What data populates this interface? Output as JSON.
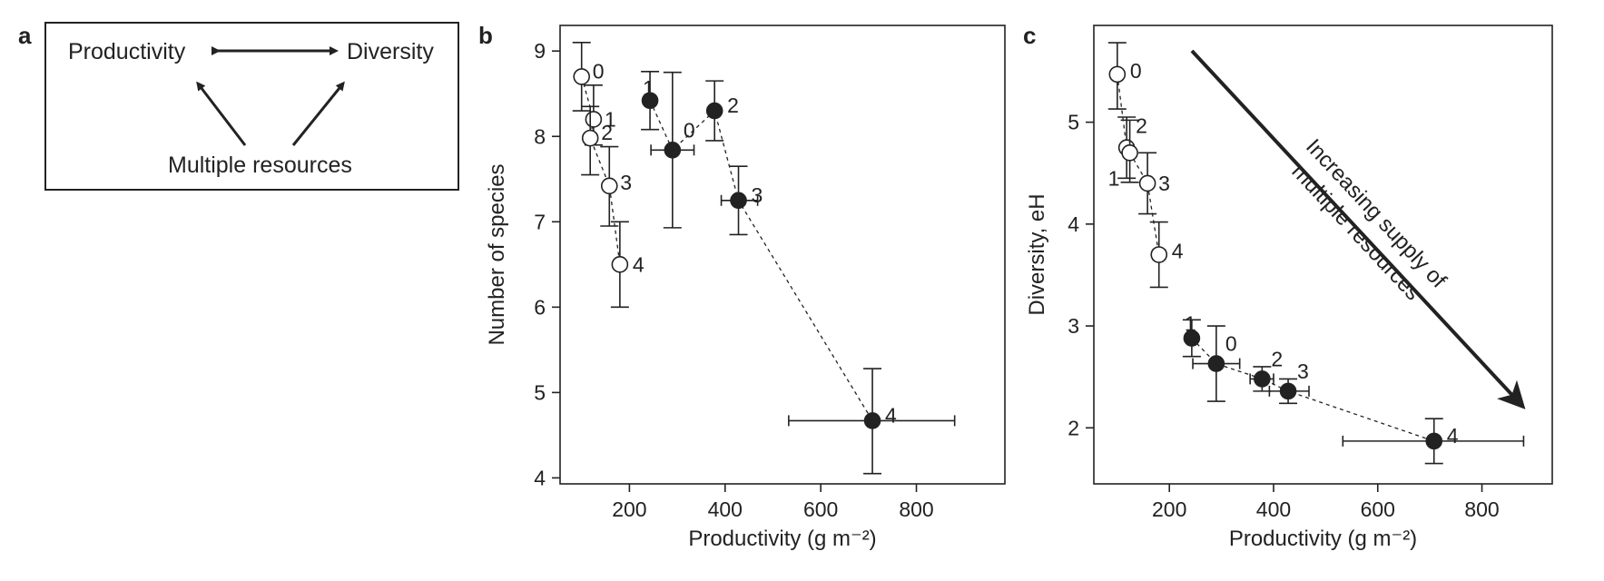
{
  "panel_a": {
    "letter": "a",
    "node_left": "Productivity",
    "node_right": "Diversity",
    "node_bottom": "Multiple resources"
  },
  "chart_data": [
    {
      "panel": "b",
      "type": "scatter",
      "xlabel": "Productivity (g m⁻²)",
      "ylabel": "Number  of species",
      "xlim": [
        55,
        985
      ],
      "ylim": [
        3.93,
        9.3
      ],
      "xticks": [
        200,
        400,
        600,
        800
      ],
      "yticks": [
        4,
        5,
        6,
        7,
        8,
        9
      ],
      "grid": false,
      "series": [
        {
          "marker": "open-circle",
          "dashed_line": true,
          "points": [
            {
              "label": "0",
              "x": 100,
              "y": 8.7,
              "yerr": [
                8.3,
                9.1
              ]
            },
            {
              "label": "1",
              "x": 125,
              "y": 8.2,
              "yerr": [
                7.9,
                8.6
              ]
            },
            {
              "label": "2",
              "x": 118,
              "y": 7.98,
              "yerr": [
                7.55,
                8.35
              ]
            },
            {
              "label": "3",
              "x": 158,
              "y": 7.42,
              "yerr": [
                6.95,
                7.88
              ]
            },
            {
              "label": "4",
              "x": 180,
              "y": 6.5,
              "yerr": [
                6.0,
                7.0
              ],
              "xerr": [
                168,
                192
              ]
            }
          ]
        },
        {
          "marker": "filled-circle",
          "dashed_line": true,
          "points": [
            {
              "label": "1",
              "x": 243,
              "y": 8.42,
              "yerr": [
                8.08,
                8.76
              ]
            },
            {
              "label": "0",
              "x": 290,
              "y": 7.84,
              "yerr": [
                6.93,
                8.75
              ],
              "xerr": [
                245,
                335
              ]
            },
            {
              "label": "2",
              "x": 378,
              "y": 8.3,
              "yerr": [
                7.95,
                8.65
              ]
            },
            {
              "label": "3",
              "x": 428,
              "y": 7.25,
              "yerr": [
                6.85,
                7.65
              ],
              "xerr": [
                392,
                468
              ]
            },
            {
              "label": "4",
              "x": 708,
              "y": 4.67,
              "yerr": [
                4.05,
                5.28
              ],
              "xerr": [
                533,
                880
              ]
            }
          ]
        }
      ]
    },
    {
      "panel": "c",
      "type": "scatter",
      "xlabel": "Productivity (g m⁻²)",
      "ylabel": "Diversity, eH",
      "xlim": [
        55,
        935
      ],
      "ylim": [
        1.45,
        5.95
      ],
      "xticks": [
        200,
        400,
        600,
        800
      ],
      "yticks": [
        2,
        3,
        4,
        5
      ],
      "grid": false,
      "annotation": "Increasing supply of multiple resources",
      "series": [
        {
          "marker": "open-circle",
          "dashed_line": true,
          "points": [
            {
              "label": "0",
              "x": 100,
              "y": 5.47,
              "yerr": [
                5.13,
                5.78
              ]
            },
            {
              "label": "2",
              "x": 118,
              "y": 4.75,
              "yerr": [
                4.45,
                5.05
              ]
            },
            {
              "label": "1",
              "x": 124,
              "y": 4.7,
              "yerr": [
                4.41,
                5.02
              ]
            },
            {
              "label": "3",
              "x": 158,
              "y": 4.4,
              "yerr": [
                4.1,
                4.7
              ]
            },
            {
              "label": "4",
              "x": 180,
              "y": 3.7,
              "yerr": [
                3.38,
                4.02
              ],
              "xerr": [
                168,
                192
              ]
            }
          ]
        },
        {
          "marker": "filled-circle",
          "dashed_line": true,
          "points": [
            {
              "label": "1",
              "x": 243,
              "y": 2.88,
              "yerr": [
                2.7,
                3.06
              ]
            },
            {
              "label": "0",
              "x": 290,
              "y": 2.63,
              "yerr": [
                2.26,
                3.0
              ],
              "xerr": [
                245,
                335
              ]
            },
            {
              "label": "2",
              "x": 378,
              "y": 2.48,
              "yerr": [
                2.36,
                2.6
              ],
              "xerr": [
                355,
                400
              ]
            },
            {
              "label": "3",
              "x": 428,
              "y": 2.36,
              "yerr": [
                2.24,
                2.48
              ],
              "xerr": [
                392,
                468
              ]
            },
            {
              "label": "4",
              "x": 708,
              "y": 1.87,
              "yerr": [
                1.65,
                2.09
              ],
              "xerr": [
                533,
                880
              ]
            }
          ]
        }
      ]
    }
  ]
}
